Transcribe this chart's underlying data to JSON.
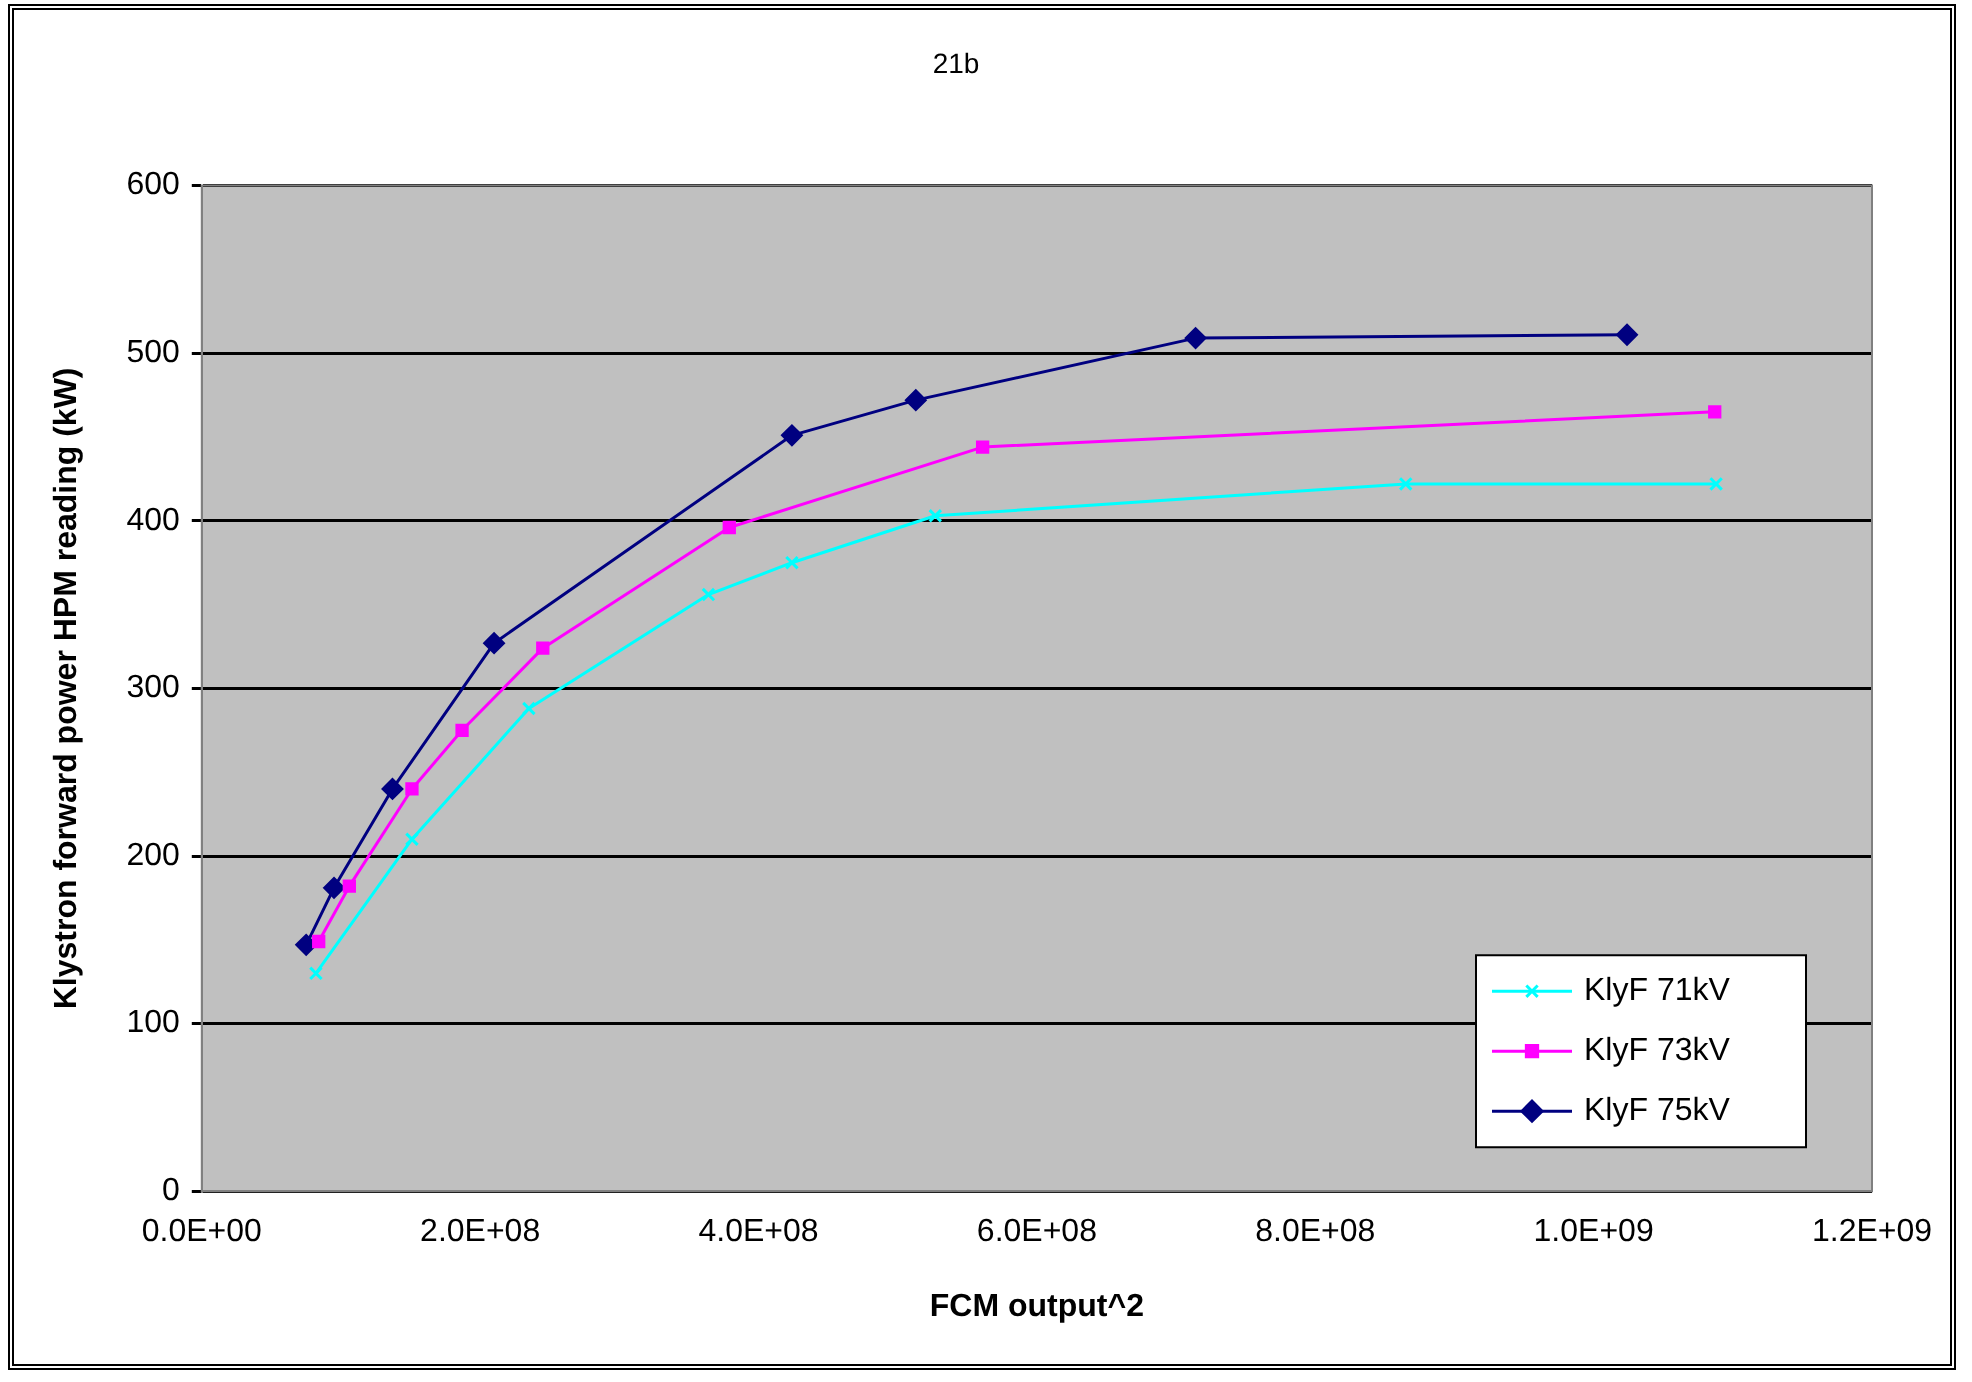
{
  "chart_data": {
    "type": "line",
    "title": "21b",
    "xlabel": "FCM output^2",
    "ylabel": "Klystron forward power HPM reading (kW)",
    "series": [
      {
        "name": "KlyF 71kV",
        "color": "#00ffff",
        "marker": "cross",
        "x": [
          82000000,
          151000000,
          235000000,
          364000000,
          424000000,
          527000000,
          865000000,
          1088000000
        ],
        "values": [
          130,
          210,
          288,
          356,
          375,
          403,
          422,
          422
        ]
      },
      {
        "name": "KlyF 73kV",
        "color": "#ff00ff",
        "marker": "square",
        "x": [
          84000000,
          106000000,
          151000000,
          187000000,
          245000000,
          379000000,
          561000000,
          1087000000
        ],
        "values": [
          149,
          182,
          240,
          275,
          324,
          396,
          444,
          465
        ]
      },
      {
        "name": "KlyF 75kV",
        "color": "#000080",
        "marker": "diamond",
        "x": [
          75000000,
          95000000,
          137000000,
          210000000,
          424000000,
          513000000,
          714000000,
          1024000000
        ],
        "values": [
          147,
          181,
          240,
          327,
          451,
          472,
          509,
          511
        ]
      }
    ],
    "xlim": [
      0,
      1200000000
    ],
    "xticks": [
      {
        "value": 0,
        "label": "0.0E+00"
      },
      {
        "value": 200000000,
        "label": "2.0E+08"
      },
      {
        "value": 400000000,
        "label": "4.0E+08"
      },
      {
        "value": 600000000,
        "label": "6.0E+08"
      },
      {
        "value": 800000000,
        "label": "8.0E+08"
      },
      {
        "value": 1000000000,
        "label": "1.0E+09"
      },
      {
        "value": 1200000000,
        "label": "1.2E+09"
      }
    ],
    "ylim": [
      0,
      600
    ],
    "yticks": [
      0,
      100,
      200,
      300,
      400,
      500,
      600
    ],
    "grid": "y",
    "legend": "bottom right",
    "line_style": "solid"
  }
}
